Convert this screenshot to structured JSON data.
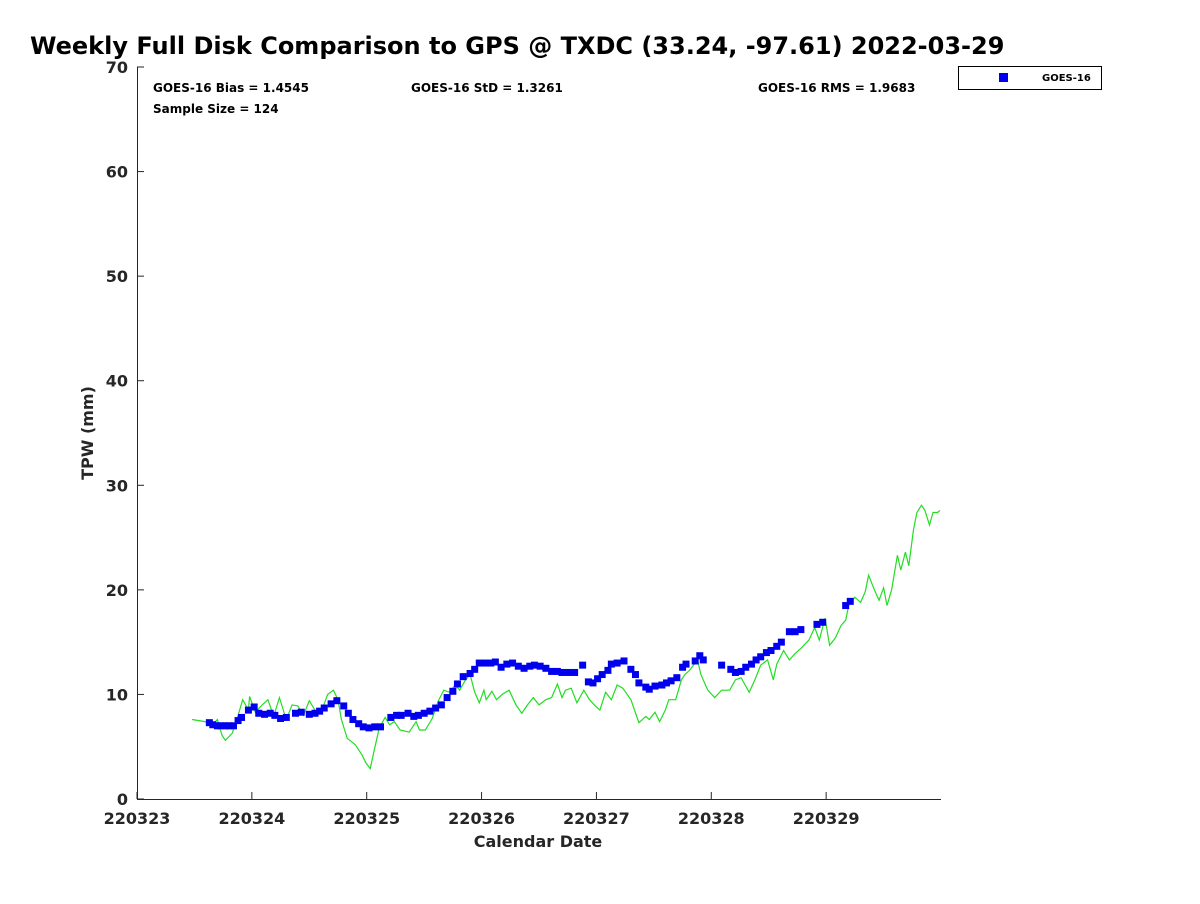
{
  "chart_data": {
    "type": "scatter",
    "title": "Weekly Full Disk Comparison to GPS @ TXDC (33.24, -97.61) 2022-03-29",
    "xlabel": "Calendar Date",
    "ylabel": "TPW (mm)",
    "x_units": "days since 220323",
    "xlim": [
      0,
      7
    ],
    "ylim": [
      0,
      70
    ],
    "x_tick_values": [
      0,
      1,
      2,
      3,
      4,
      5,
      6
    ],
    "x_tick_labels": [
      "220323",
      "220324",
      "220325",
      "220326",
      "220327",
      "220328",
      "220329"
    ],
    "y_tick_values": [
      0,
      10,
      20,
      30,
      40,
      50,
      60,
      70
    ],
    "y_tick_labels": [
      "0",
      "10",
      "20",
      "30",
      "40",
      "50",
      "60",
      "70"
    ],
    "grid": false,
    "legend": {
      "position": "top-right",
      "entries": [
        "GOES-16"
      ]
    },
    "stats": {
      "bias": "GOES-16 Bias = 1.4545",
      "std": "GOES-16 StD = 1.3261",
      "rms": "GOES-16 RMS = 1.9683",
      "sample": "Sample Size = 124"
    },
    "colors": {
      "goes": "#0000ee",
      "gps": "#22dd22"
    },
    "series": [
      {
        "name": "GOES-16",
        "kind": "markers",
        "points": [
          [
            0.63,
            7.3
          ],
          [
            0.66,
            7.1
          ],
          [
            0.7,
            7.0
          ],
          [
            0.73,
            7.0
          ],
          [
            0.77,
            7.0
          ],
          [
            0.8,
            7.0
          ],
          [
            0.84,
            7.0
          ],
          [
            0.88,
            7.5
          ],
          [
            0.91,
            7.8
          ],
          [
            0.97,
            8.5
          ],
          [
            1.02,
            8.8
          ],
          [
            1.06,
            8.2
          ],
          [
            1.11,
            8.1
          ],
          [
            1.16,
            8.2
          ],
          [
            1.2,
            8.0
          ],
          [
            1.25,
            7.7
          ],
          [
            1.3,
            7.8
          ],
          [
            1.38,
            8.2
          ],
          [
            1.43,
            8.3
          ],
          [
            1.5,
            8.1
          ],
          [
            1.55,
            8.2
          ],
          [
            1.59,
            8.4
          ],
          [
            1.63,
            8.7
          ],
          [
            1.69,
            9.1
          ],
          [
            1.74,
            9.4
          ],
          [
            1.8,
            8.9
          ],
          [
            1.84,
            8.2
          ],
          [
            1.88,
            7.6
          ],
          [
            1.93,
            7.2
          ],
          [
            1.97,
            6.9
          ],
          [
            2.02,
            6.8
          ],
          [
            2.07,
            6.9
          ],
          [
            2.12,
            6.9
          ],
          [
            2.21,
            7.8
          ],
          [
            2.26,
            8.0
          ],
          [
            2.3,
            8.0
          ],
          [
            2.36,
            8.2
          ],
          [
            2.41,
            7.9
          ],
          [
            2.45,
            8.0
          ],
          [
            2.5,
            8.2
          ],
          [
            2.55,
            8.4
          ],
          [
            2.6,
            8.7
          ],
          [
            2.65,
            9.0
          ],
          [
            2.7,
            9.7
          ],
          [
            2.75,
            10.3
          ],
          [
            2.79,
            11.0
          ],
          [
            2.84,
            11.7
          ],
          [
            2.9,
            12.0
          ],
          [
            2.94,
            12.4
          ],
          [
            2.98,
            13.0
          ],
          [
            3.03,
            13.0
          ],
          [
            3.08,
            13.0
          ],
          [
            3.12,
            13.1
          ],
          [
            3.17,
            12.6
          ],
          [
            3.22,
            12.9
          ],
          [
            3.27,
            13.0
          ],
          [
            3.32,
            12.7
          ],
          [
            3.37,
            12.5
          ],
          [
            3.42,
            12.7
          ],
          [
            3.46,
            12.8
          ],
          [
            3.51,
            12.7
          ],
          [
            3.56,
            12.5
          ],
          [
            3.61,
            12.2
          ],
          [
            3.66,
            12.2
          ],
          [
            3.7,
            12.1
          ],
          [
            3.76,
            12.1
          ],
          [
            3.81,
            12.1
          ],
          [
            3.88,
            12.8
          ],
          [
            3.93,
            11.2
          ],
          [
            3.97,
            11.1
          ],
          [
            4.01,
            11.5
          ],
          [
            4.05,
            11.9
          ],
          [
            4.1,
            12.3
          ],
          [
            4.13,
            12.9
          ],
          [
            4.18,
            13.0
          ],
          [
            4.24,
            13.2
          ],
          [
            4.3,
            12.4
          ],
          [
            4.34,
            11.9
          ],
          [
            4.37,
            11.1
          ],
          [
            4.43,
            10.7
          ],
          [
            4.46,
            10.5
          ],
          [
            4.51,
            10.8
          ],
          [
            4.57,
            10.9
          ],
          [
            4.61,
            11.1
          ],
          [
            4.65,
            11.3
          ],
          [
            4.7,
            11.6
          ],
          [
            4.75,
            12.6
          ],
          [
            4.78,
            12.9
          ],
          [
            4.86,
            13.2
          ],
          [
            4.9,
            13.7
          ],
          [
            4.93,
            13.3
          ],
          [
            5.09,
            12.8
          ],
          [
            5.17,
            12.4
          ],
          [
            5.21,
            12.1
          ],
          [
            5.26,
            12.2
          ],
          [
            5.3,
            12.6
          ],
          [
            5.35,
            12.9
          ],
          [
            5.39,
            13.3
          ],
          [
            5.43,
            13.6
          ],
          [
            5.48,
            14.0
          ],
          [
            5.52,
            14.2
          ],
          [
            5.57,
            14.6
          ],
          [
            5.61,
            15.0
          ],
          [
            5.68,
            16.0
          ],
          [
            5.73,
            16.0
          ],
          [
            5.78,
            16.2
          ],
          [
            5.92,
            16.7
          ],
          [
            5.97,
            16.9
          ],
          [
            6.17,
            18.5
          ],
          [
            6.21,
            18.9
          ]
        ]
      },
      {
        "name": "GPS",
        "kind": "line",
        "points": [
          [
            0.48,
            7.6
          ],
          [
            0.59,
            7.4
          ],
          [
            0.66,
            7.1
          ],
          [
            0.7,
            7.6
          ],
          [
            0.74,
            6.1
          ],
          [
            0.77,
            5.6
          ],
          [
            0.83,
            6.3
          ],
          [
            0.88,
            8.0
          ],
          [
            0.92,
            9.5
          ],
          [
            0.97,
            8.5
          ],
          [
            0.98,
            9.8
          ],
          [
            1.03,
            8.3
          ],
          [
            1.09,
            9.0
          ],
          [
            1.14,
            9.5
          ],
          [
            1.19,
            7.9
          ],
          [
            1.24,
            9.7
          ],
          [
            1.3,
            7.6
          ],
          [
            1.35,
            9.0
          ],
          [
            1.4,
            8.9
          ],
          [
            1.45,
            8.0
          ],
          [
            1.5,
            9.4
          ],
          [
            1.56,
            8.3
          ],
          [
            1.61,
            8.5
          ],
          [
            1.66,
            10.0
          ],
          [
            1.71,
            10.4
          ],
          [
            1.75,
            9.5
          ],
          [
            1.78,
            7.6
          ],
          [
            1.83,
            5.8
          ],
          [
            1.9,
            5.2
          ],
          [
            1.96,
            4.2
          ],
          [
            1.99,
            3.5
          ],
          [
            2.03,
            2.9
          ],
          [
            2.06,
            4.4
          ],
          [
            2.11,
            6.8
          ],
          [
            2.16,
            7.8
          ],
          [
            2.2,
            7.1
          ],
          [
            2.24,
            7.4
          ],
          [
            2.29,
            6.6
          ],
          [
            2.37,
            6.4
          ],
          [
            2.43,
            7.4
          ],
          [
            2.46,
            6.6
          ],
          [
            2.51,
            6.6
          ],
          [
            2.57,
            7.7
          ],
          [
            2.62,
            9.3
          ],
          [
            2.67,
            10.4
          ],
          [
            2.72,
            10.2
          ],
          [
            2.77,
            10.9
          ],
          [
            2.81,
            10.4
          ],
          [
            2.86,
            11.4
          ],
          [
            2.9,
            11.9
          ],
          [
            2.94,
            10.2
          ],
          [
            2.98,
            9.2
          ],
          [
            3.02,
            10.4
          ],
          [
            3.04,
            9.5
          ],
          [
            3.09,
            10.3
          ],
          [
            3.13,
            9.5
          ],
          [
            3.18,
            10.0
          ],
          [
            3.24,
            10.4
          ],
          [
            3.3,
            9.0
          ],
          [
            3.35,
            8.2
          ],
          [
            3.4,
            9.0
          ],
          [
            3.45,
            9.7
          ],
          [
            3.5,
            9.0
          ],
          [
            3.56,
            9.5
          ],
          [
            3.61,
            9.7
          ],
          [
            3.66,
            11.0
          ],
          [
            3.7,
            9.7
          ],
          [
            3.73,
            10.4
          ],
          [
            3.78,
            10.6
          ],
          [
            3.83,
            9.2
          ],
          [
            3.89,
            10.4
          ],
          [
            3.94,
            9.5
          ],
          [
            3.99,
            8.9
          ],
          [
            4.03,
            8.5
          ],
          [
            4.08,
            10.2
          ],
          [
            4.13,
            9.5
          ],
          [
            4.18,
            10.9
          ],
          [
            4.23,
            10.6
          ],
          [
            4.3,
            9.5
          ],
          [
            4.37,
            7.3
          ],
          [
            4.43,
            7.9
          ],
          [
            4.46,
            7.6
          ],
          [
            4.51,
            8.3
          ],
          [
            4.55,
            7.4
          ],
          [
            4.6,
            8.5
          ],
          [
            4.63,
            9.5
          ],
          [
            4.69,
            9.5
          ],
          [
            4.74,
            11.4
          ],
          [
            4.77,
            11.9
          ],
          [
            4.81,
            12.3
          ],
          [
            4.88,
            13.3
          ],
          [
            4.91,
            11.9
          ],
          [
            4.97,
            10.4
          ],
          [
            5.03,
            9.7
          ],
          [
            5.09,
            10.4
          ],
          [
            5.16,
            10.4
          ],
          [
            5.21,
            11.4
          ],
          [
            5.26,
            11.6
          ],
          [
            5.33,
            10.2
          ],
          [
            5.38,
            11.4
          ],
          [
            5.43,
            12.8
          ],
          [
            5.49,
            13.3
          ],
          [
            5.54,
            11.4
          ],
          [
            5.57,
            12.9
          ],
          [
            5.63,
            14.2
          ],
          [
            5.68,
            13.3
          ],
          [
            5.73,
            13.9
          ],
          [
            5.78,
            14.4
          ],
          [
            5.85,
            15.2
          ],
          [
            5.9,
            16.4
          ],
          [
            5.94,
            15.2
          ],
          [
            5.99,
            17.3
          ],
          [
            6.03,
            14.7
          ],
          [
            6.08,
            15.4
          ],
          [
            6.13,
            16.6
          ],
          [
            6.17,
            17.1
          ],
          [
            6.2,
            18.7
          ],
          [
            6.25,
            19.3
          ],
          [
            6.3,
            18.8
          ],
          [
            6.34,
            19.8
          ],
          [
            6.37,
            21.4
          ],
          [
            6.42,
            20.0
          ],
          [
            6.46,
            19.0
          ],
          [
            6.5,
            20.2
          ],
          [
            6.53,
            18.5
          ],
          [
            6.57,
            20.0
          ],
          [
            6.62,
            23.3
          ],
          [
            6.65,
            21.9
          ],
          [
            6.69,
            23.6
          ],
          [
            6.72,
            22.3
          ],
          [
            6.76,
            25.7
          ],
          [
            6.79,
            27.4
          ],
          [
            6.83,
            28.1
          ],
          [
            6.86,
            27.6
          ],
          [
            6.9,
            26.2
          ],
          [
            6.93,
            27.4
          ],
          [
            6.97,
            27.4
          ],
          [
            6.99,
            27.6
          ]
        ]
      }
    ]
  }
}
